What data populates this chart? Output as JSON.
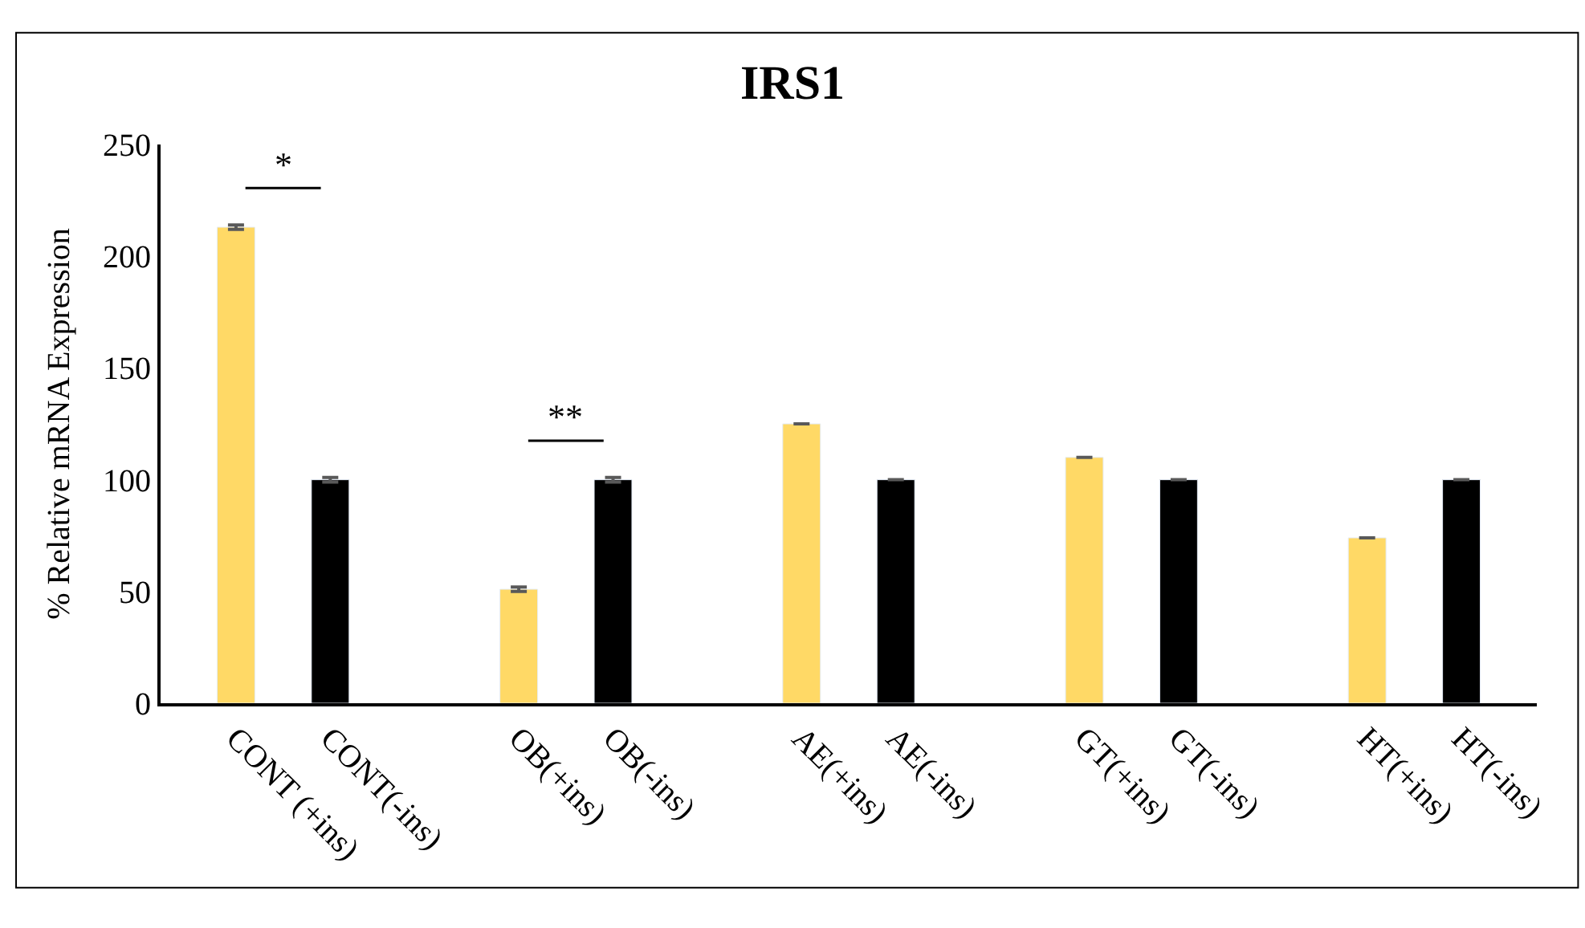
{
  "chart_data": {
    "type": "bar",
    "title": "IRS1",
    "ylabel": "% Relative mRNA Expression",
    "categories": [
      "CONT (+ins)",
      "CONT(-ins)",
      null,
      "OB(+ins)",
      "OB(-ins)",
      null,
      "AE(+ins)",
      "AE(-ins)",
      null,
      "GT(+ins)",
      "GT(-ins)",
      null,
      "HT(+ins)",
      "HT(-ins)"
    ],
    "values": [
      213,
      100,
      null,
      51,
      100,
      null,
      125,
      100,
      null,
      110,
      100,
      null,
      74,
      100
    ],
    "colors": [
      "#ffd966",
      "#000000",
      null,
      "#ffd966",
      "#000000",
      null,
      "#ffd966",
      "#000000",
      null,
      "#ffd966",
      "#000000",
      null,
      "#ffd966",
      "#000000"
    ],
    "errors": [
      1,
      1,
      null,
      1,
      1,
      null,
      null,
      null,
      null,
      null,
      null,
      null,
      null,
      null
    ],
    "ylim": [
      0,
      250
    ],
    "yticks": [
      0,
      50,
      100,
      150,
      200,
      250
    ],
    "annotations": [
      "*",
      "**"
    ]
  }
}
